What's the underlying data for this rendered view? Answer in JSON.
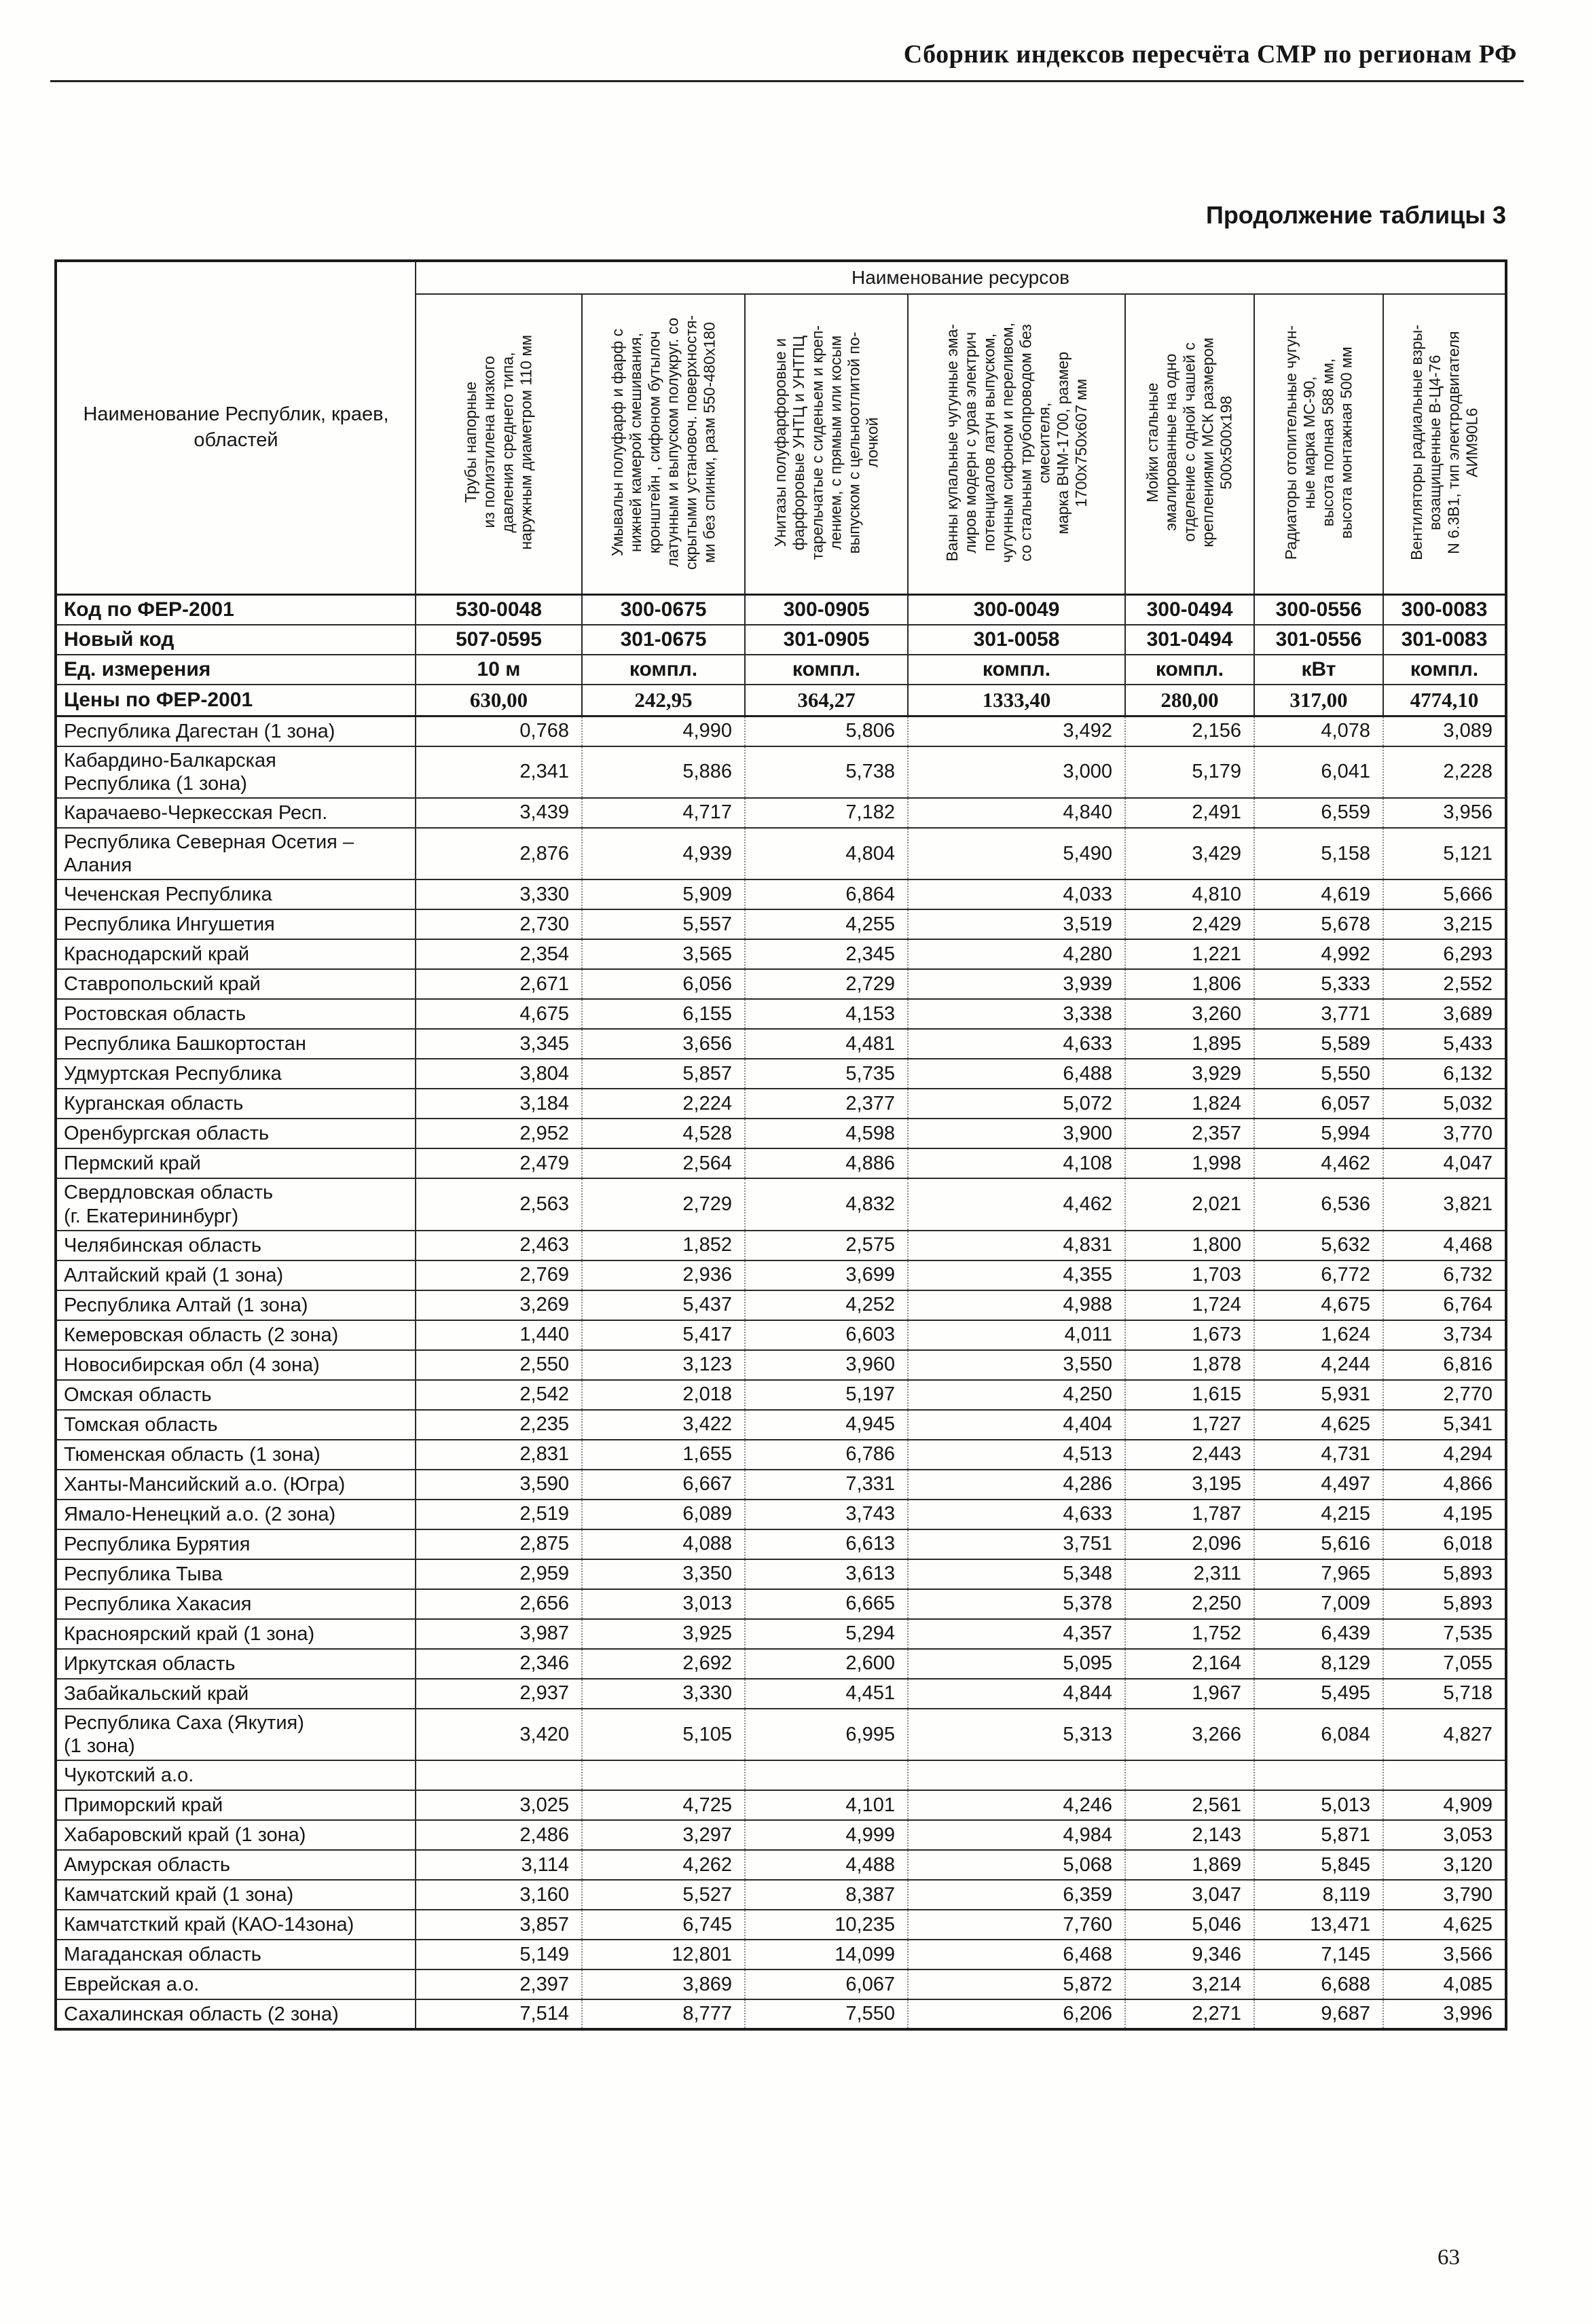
{
  "page": {
    "header_title": "Сборник индексов пересчёта СМР  по регионам РФ",
    "table_caption": "Продолжение таблицы 3",
    "page_number": "63"
  },
  "table": {
    "regions_header": "Наименование Республик, краев, областей",
    "resources_group_header": "Наименование ресурсов",
    "columns": [
      "Трубы напорные\nиз полиэтилена низкого\nдавления среднего типа,\nнаружным диаметром 110 мм",
      "Умывальн полуфарф и фарф с\nнижней камерой смешивания,\nкронштейн , сифоном бутылоч\nлатунным и выпуском полукруг. со\nскрытыми установоч. поверхностя-\nми без спинки, разм 550-480х180",
      "Унитазы полуфарфоровые и\nфарфоровые УНТЦ и УНТПЦ\nтарельчатые с сиденьем и креп-\nлением, с прямым или косым\nвыпуском с цельноотлитой по-\nлочкой",
      "Ванны купальные чугунные эма-\nлиров модерн с урав электрич\nпотенциалов латун выпуском,\nчугунным сифоном и переливом,\nсо стальным трубопроводом без\nсмесителя,\nмарка ВЧМ-1700, размер\n1700х750х607 мм",
      "Мойки стальные\nэмалированные на одно\nотделение с одной чашей с\nкреплениями МСК размером\n500х500х198",
      "Радиаторы отопительные чугун-\nные марка МС-90,\nвысота полная 588 мм,\nвысота монтажная 500 мм",
      "Вентиляторы радиальные взры-\nвозащищенные В-Ц4-76\nN 6.3В1, тип электродвигателя\nАИМ90L6"
    ],
    "meta_rows": [
      {
        "label": "Код по ФЕР-2001",
        "values": [
          "530-0048",
          "300-0675",
          "300-0905",
          "300-0049",
          "300-0494",
          "300-0556",
          "300-0083"
        ]
      },
      {
        "label": "Новый код",
        "values": [
          "507-0595",
          "301-0675",
          "301-0905",
          "301-0058",
          "301-0494",
          "301-0556",
          "301-0083"
        ]
      },
      {
        "label": "Ед. измерения",
        "values": [
          "10 м",
          "компл.",
          "компл.",
          "компл.",
          "компл.",
          "кВт",
          "компл."
        ]
      },
      {
        "label": "Цены по ФЕР-2001",
        "values": [
          "630,00",
          "242,95",
          "364,27",
          "1333,40",
          "280,00",
          "317,00",
          "4774,10"
        ]
      }
    ],
    "rows": [
      {
        "name": "Республика Дагестан (1 зона)",
        "values": [
          "0,768",
          "4,990",
          "5,806",
          "3,492",
          "2,156",
          "4,078",
          "3,089"
        ]
      },
      {
        "name": "Кабардино-Балкарская\nРеспублика (1 зона)",
        "values": [
          "2,341",
          "5,886",
          "5,738",
          "3,000",
          "5,179",
          "6,041",
          "2,228"
        ]
      },
      {
        "name": "Карачаево-Черкесская Респ.",
        "values": [
          "3,439",
          "4,717",
          "7,182",
          "4,840",
          "2,491",
          "6,559",
          "3,956"
        ]
      },
      {
        "name": "Республика Северная Осетия –\nАлания",
        "values": [
          "2,876",
          "4,939",
          "4,804",
          "5,490",
          "3,429",
          "5,158",
          "5,121"
        ]
      },
      {
        "name": "Чеченская Республика",
        "values": [
          "3,330",
          "5,909",
          "6,864",
          "4,033",
          "4,810",
          "4,619",
          "5,666"
        ]
      },
      {
        "name": "Республика Ингушетия",
        "values": [
          "2,730",
          "5,557",
          "4,255",
          "3,519",
          "2,429",
          "5,678",
          "3,215"
        ]
      },
      {
        "name": "Краснодарский край",
        "values": [
          "2,354",
          "3,565",
          "2,345",
          "4,280",
          "1,221",
          "4,992",
          "6,293"
        ]
      },
      {
        "name": "Ставропольский край",
        "values": [
          "2,671",
          "6,056",
          "2,729",
          "3,939",
          "1,806",
          "5,333",
          "2,552"
        ]
      },
      {
        "name": "Ростовская область",
        "values": [
          "4,675",
          "6,155",
          "4,153",
          "3,338",
          "3,260",
          "3,771",
          "3,689"
        ]
      },
      {
        "name": "Республика Башкортостан",
        "values": [
          "3,345",
          "3,656",
          "4,481",
          "4,633",
          "1,895",
          "5,589",
          "5,433"
        ]
      },
      {
        "name": "Удмуртская Республика",
        "values": [
          "3,804",
          "5,857",
          "5,735",
          "6,488",
          "3,929",
          "5,550",
          "6,132"
        ]
      },
      {
        "name": "Курганская область",
        "values": [
          "3,184",
          "2,224",
          "2,377",
          "5,072",
          "1,824",
          "6,057",
          "5,032"
        ]
      },
      {
        "name": "Оренбургская область",
        "values": [
          "2,952",
          "4,528",
          "4,598",
          "3,900",
          "2,357",
          "5,994",
          "3,770"
        ]
      },
      {
        "name": "Пермский край",
        "values": [
          "2,479",
          "2,564",
          "4,886",
          "4,108",
          "1,998",
          "4,462",
          "4,047"
        ]
      },
      {
        "name": "Свердловская область\n(г. Екатерининбург)",
        "values": [
          "2,563",
          "2,729",
          "4,832",
          "4,462",
          "2,021",
          "6,536",
          "3,821"
        ]
      },
      {
        "name": "Челябинская область",
        "values": [
          "2,463",
          "1,852",
          "2,575",
          "4,831",
          "1,800",
          "5,632",
          "4,468"
        ]
      },
      {
        "name": "Алтайский край (1 зона)",
        "values": [
          "2,769",
          "2,936",
          "3,699",
          "4,355",
          "1,703",
          "6,772",
          "6,732"
        ]
      },
      {
        "name": "Республика Алтай (1 зона)",
        "values": [
          "3,269",
          "5,437",
          "4,252",
          "4,988",
          "1,724",
          "4,675",
          "6,764"
        ]
      },
      {
        "name": "Кемеровская область (2 зона)",
        "values": [
          "1,440",
          "5,417",
          "6,603",
          "4,011",
          "1,673",
          "1,624",
          "3,734"
        ]
      },
      {
        "name": "Новосибирская обл  (4 зона)",
        "values": [
          "2,550",
          "3,123",
          "3,960",
          "3,550",
          "1,878",
          "4,244",
          "6,816"
        ]
      },
      {
        "name": "Омская область",
        "values": [
          "2,542",
          "2,018",
          "5,197",
          "4,250",
          "1,615",
          "5,931",
          "2,770"
        ]
      },
      {
        "name": "Томская область",
        "values": [
          "2,235",
          "3,422",
          "4,945",
          "4,404",
          "1,727",
          "4,625",
          "5,341"
        ]
      },
      {
        "name": "Тюменская область (1 зона)",
        "values": [
          "2,831",
          "1,655",
          "6,786",
          "4,513",
          "2,443",
          "4,731",
          "4,294"
        ]
      },
      {
        "name": "Ханты-Мансийский а.о. (Югра)",
        "values": [
          "3,590",
          "6,667",
          "7,331",
          "4,286",
          "3,195",
          "4,497",
          "4,866"
        ]
      },
      {
        "name": "Ямало-Ненецкий а.о. (2 зона)",
        "values": [
          "2,519",
          "6,089",
          "3,743",
          "4,633",
          "1,787",
          "4,215",
          "4,195"
        ]
      },
      {
        "name": "Республика Бурятия",
        "values": [
          "2,875",
          "4,088",
          "6,613",
          "3,751",
          "2,096",
          "5,616",
          "6,018"
        ]
      },
      {
        "name": "Республика Тыва",
        "values": [
          "2,959",
          "3,350",
          "3,613",
          "5,348",
          "2,311",
          "7,965",
          "5,893"
        ]
      },
      {
        "name": "Республика Хакасия",
        "values": [
          "2,656",
          "3,013",
          "6,665",
          "5,378",
          "2,250",
          "7,009",
          "5,893"
        ]
      },
      {
        "name": "Красноярский край (1 зона)",
        "values": [
          "3,987",
          "3,925",
          "5,294",
          "4,357",
          "1,752",
          "6,439",
          "7,535"
        ]
      },
      {
        "name": "Иркутская область",
        "values": [
          "2,346",
          "2,692",
          "2,600",
          "5,095",
          "2,164",
          "8,129",
          "7,055"
        ]
      },
      {
        "name": "Забайкальский край",
        "values": [
          "2,937",
          "3,330",
          "4,451",
          "4,844",
          "1,967",
          "5,495",
          "5,718"
        ]
      },
      {
        "name": "Республика Саха (Якутия)\n(1 зона)",
        "values": [
          "3,420",
          "5,105",
          "6,995",
          "5,313",
          "3,266",
          "6,084",
          "4,827"
        ]
      },
      {
        "name": "Чукотский а.о.",
        "values": [
          "",
          "",
          "",
          "",
          "",
          "",
          ""
        ]
      },
      {
        "name": "Приморский край",
        "values": [
          "3,025",
          "4,725",
          "4,101",
          "4,246",
          "2,561",
          "5,013",
          "4,909"
        ]
      },
      {
        "name": "Хабаровский край (1 зона)",
        "values": [
          "2,486",
          "3,297",
          "4,999",
          "4,984",
          "2,143",
          "5,871",
          "3,053"
        ]
      },
      {
        "name": "Амурская область",
        "values": [
          "3,114",
          "4,262",
          "4,488",
          "5,068",
          "1,869",
          "5,845",
          "3,120"
        ]
      },
      {
        "name": "Камчатский край (1 зона)",
        "values": [
          "3,160",
          "5,527",
          "8,387",
          "6,359",
          "3,047",
          "8,119",
          "3,790"
        ]
      },
      {
        "name": "Камчатсткий край (КАО-14зона)",
        "values": [
          "3,857",
          "6,745",
          "10,235",
          "7,760",
          "5,046",
          "13,471",
          "4,625"
        ]
      },
      {
        "name": "Магаданская область",
        "values": [
          "5,149",
          "12,801",
          "14,099",
          "6,468",
          "9,346",
          "7,145",
          "3,566"
        ]
      },
      {
        "name": "Еврейская а.о.",
        "values": [
          "2,397",
          "3,869",
          "6,067",
          "5,872",
          "3,214",
          "6,688",
          "4,085"
        ]
      },
      {
        "name": "Сахалинская область (2 зона)",
        "values": [
          "7,514",
          "8,777",
          "7,550",
          "6,206",
          "2,271",
          "9,687",
          "3,996"
        ]
      }
    ]
  }
}
